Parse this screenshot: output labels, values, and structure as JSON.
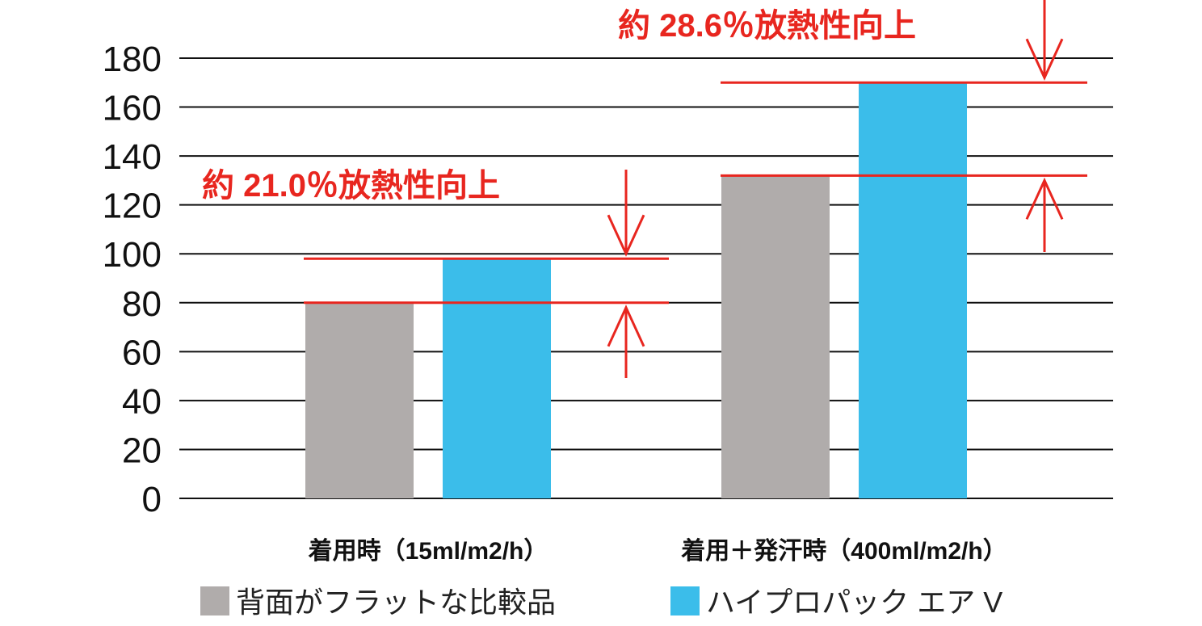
{
  "chart_data": {
    "type": "bar",
    "categories": [
      "着用時（15ml/m2/h）",
      "着用＋発汗時（400ml/m2/h）"
    ],
    "series": [
      {
        "name": "背面がフラットな比較品",
        "values": [
          80,
          132
        ],
        "color": "#b0acab"
      },
      {
        "name": "ハイプロパック エア V",
        "values": [
          98,
          170
        ],
        "color": "#3bbdea"
      }
    ],
    "ylim": [
      0,
      180
    ],
    "yticks": [
      0,
      20,
      40,
      60,
      80,
      100,
      120,
      140,
      160,
      180
    ],
    "grid": true,
    "legend_position": "bottom",
    "annotations": [
      {
        "text": "約 21.0％放熱性向上",
        "category_index": 0,
        "from": 80,
        "to": 98
      },
      {
        "text": "約 28.6％放熱性向上",
        "category_index": 1,
        "from": 132,
        "to": 170
      }
    ],
    "annotation_color": "#e8261f"
  }
}
